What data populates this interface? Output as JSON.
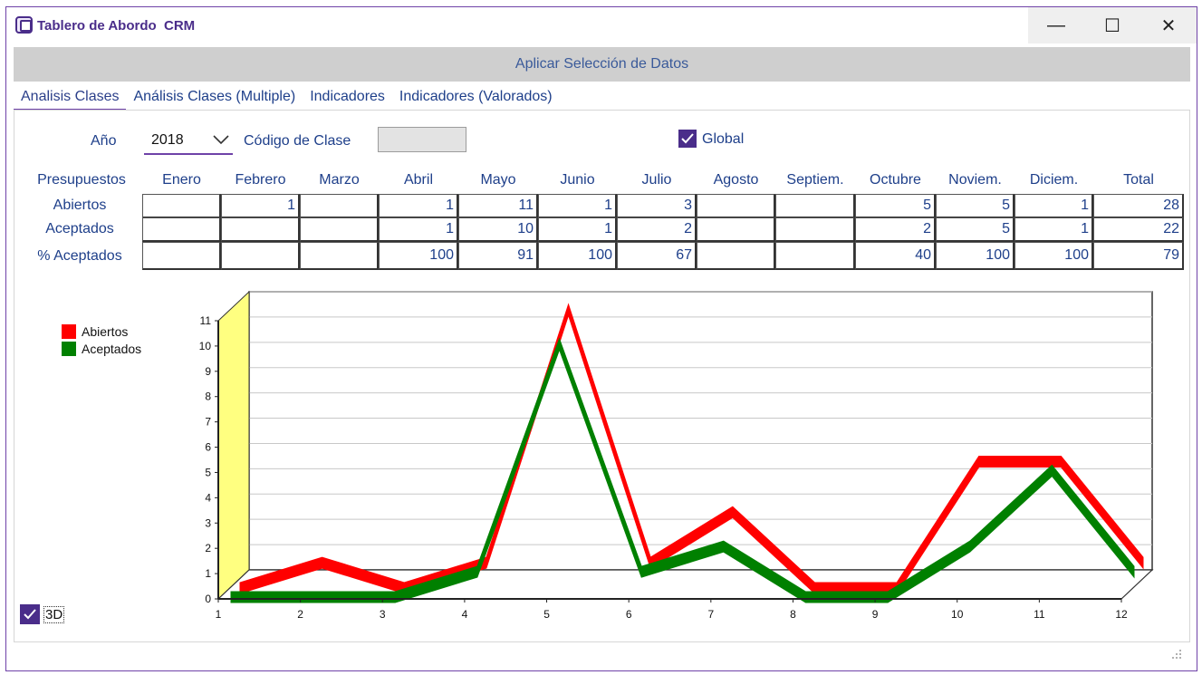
{
  "window": {
    "title": "Tablero de Abordo  CRM",
    "minimize": "—",
    "maximize": "☐",
    "close": "✕"
  },
  "toolbar": {
    "apply_label": "Aplicar Selección de Datos"
  },
  "tabs": [
    {
      "label": "Analisis Clases",
      "active": true
    },
    {
      "label": "Análisis Clases (Multiple)"
    },
    {
      "label": "Indicadores"
    },
    {
      "label": "Indicadores (Valorados)"
    }
  ],
  "filters": {
    "year_label": "Año",
    "year_value": "2018",
    "class_code_label": "Código de Clase",
    "class_code_value": "",
    "global_label": "Global",
    "global_checked": true
  },
  "grid": {
    "corner_label": "Presupuestos",
    "columns": [
      "Enero",
      "Febrero",
      "Marzo",
      "Abril",
      "Mayo",
      "Junio",
      "Julio",
      "Agosto",
      "Septiem.",
      "Octubre",
      "Noviem.",
      "Diciem.",
      "Total"
    ],
    "rows": [
      {
        "label": "Abiertos",
        "values": [
          "",
          "1",
          "",
          "1",
          "11",
          "1",
          "3",
          "",
          "",
          "5",
          "5",
          "1",
          "28"
        ]
      },
      {
        "label": "Aceptados",
        "values": [
          "",
          "",
          "",
          "1",
          "10",
          "1",
          "2",
          "",
          "",
          "2",
          "5",
          "1",
          "22"
        ]
      },
      {
        "label": "% Aceptados",
        "values": [
          "",
          "",
          "",
          "100",
          "91",
          "100",
          "67",
          "",
          "",
          "40",
          "100",
          "100",
          "79"
        ]
      }
    ]
  },
  "options": {
    "three_d_label": "3D",
    "three_d_checked": true
  },
  "chart_data": {
    "type": "line",
    "x": [
      1,
      2,
      3,
      4,
      5,
      6,
      7,
      8,
      9,
      10,
      11,
      12
    ],
    "series": [
      {
        "name": "Abiertos",
        "color": "#ff0000",
        "values": [
          0,
          1,
          0,
          1,
          11,
          1,
          3,
          0,
          0,
          5,
          5,
          1
        ]
      },
      {
        "name": "Aceptados",
        "color": "#008000",
        "values": [
          0,
          0,
          0,
          1,
          10,
          1,
          2,
          0,
          0,
          2,
          5,
          1
        ]
      }
    ],
    "ylim": [
      0,
      11
    ],
    "yticks": [
      "0",
      "1",
      "2",
      "3",
      "4",
      "5",
      "6",
      "7",
      "8",
      "9",
      "10",
      "11"
    ],
    "xticks": [
      "1",
      "2",
      "3",
      "4",
      "5",
      "6",
      "7",
      "8",
      "9",
      "10",
      "11",
      "12"
    ],
    "grid": true,
    "legend": "top-left",
    "three_d": true,
    "wall_color": "#ffff80"
  }
}
